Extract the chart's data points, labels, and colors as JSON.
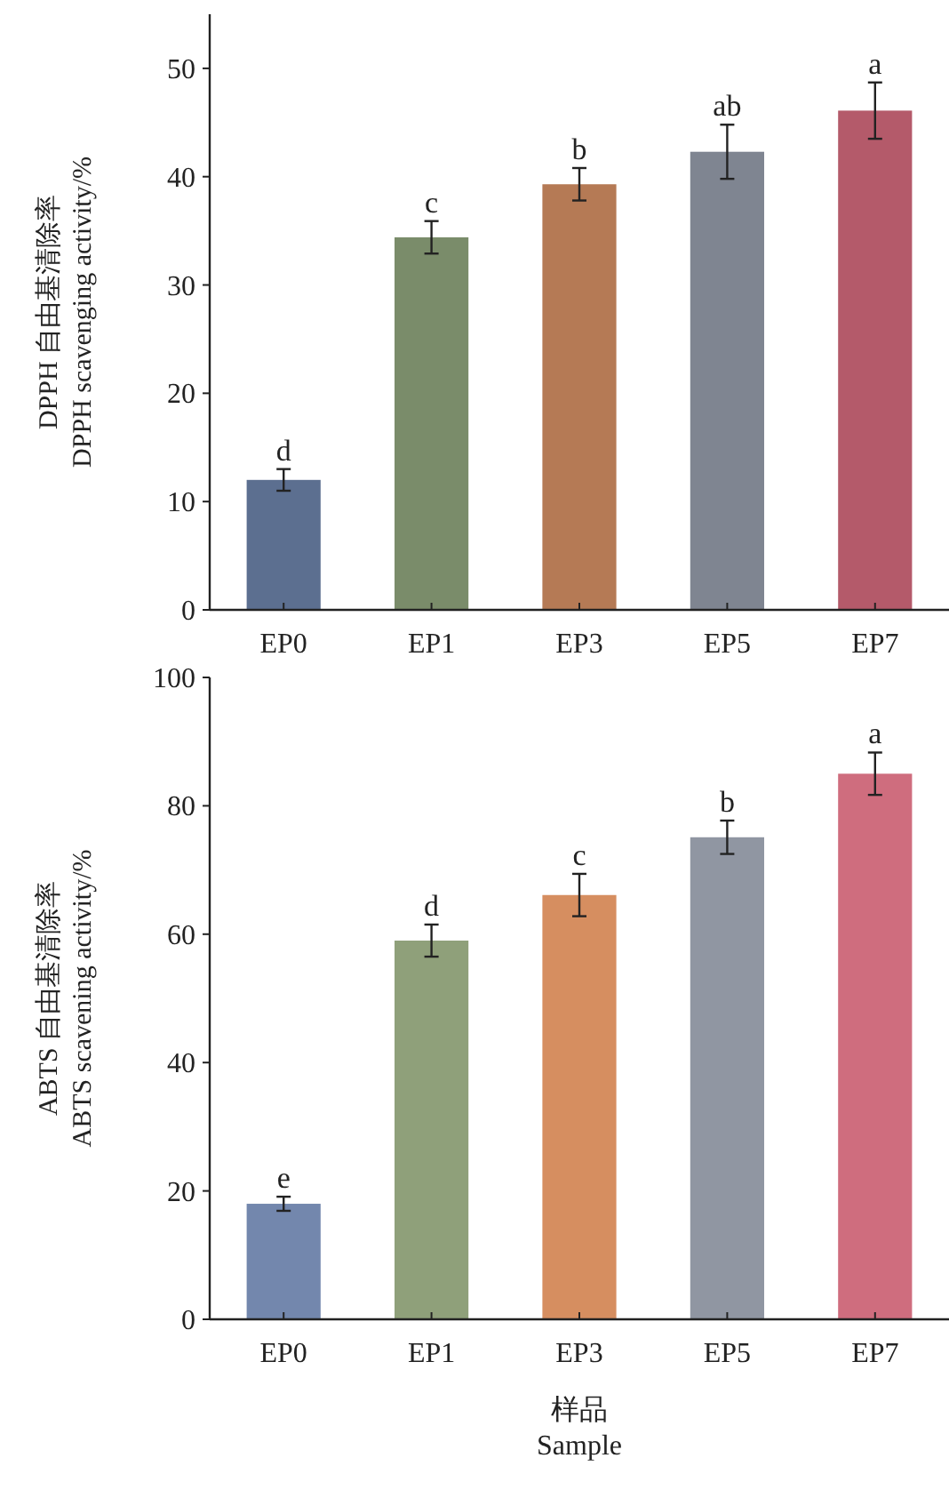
{
  "chart_data": [
    {
      "type": "bar",
      "ylabel": "DPPH 自由基清除率\nDPPH scavenging activity/%",
      "categories": [
        "EP0",
        "EP1",
        "EP3",
        "EP5",
        "EP7"
      ],
      "values": [
        12.0,
        34.4,
        39.3,
        42.3,
        46.1
      ],
      "errors": [
        1.0,
        1.5,
        1.5,
        2.5,
        2.6
      ],
      "colors": [
        "#5c6f90",
        "#7a8c6a",
        "#b57a55",
        "#7f8591",
        "#b45a6a"
      ],
      "ylim": [
        0,
        55
      ],
      "yticks": [
        0,
        10,
        20,
        30,
        40,
        50
      ],
      "annotations": [
        {
          "text": "d",
          "x": "EP0",
          "y": 13.0
        },
        {
          "text": "c",
          "x": "EP1",
          "y": 35.9
        },
        {
          "text": "b",
          "x": "EP3",
          "y": 40.8
        },
        {
          "text": "ab",
          "x": "EP5",
          "y": 44.8
        },
        {
          "text": "a",
          "x": "EP7",
          "y": 48.7
        }
      ]
    },
    {
      "type": "bar",
      "ylabel": "ABTS 自由基清除率\nABTS scavening activity/%",
      "xlabel": "样品\nSample",
      "categories": [
        "EP0",
        "EP1",
        "EP3",
        "EP5",
        "EP7"
      ],
      "values": [
        18.0,
        59.0,
        66.1,
        75.1,
        85.0
      ],
      "errors": [
        1.1,
        2.5,
        3.3,
        2.6,
        3.3
      ],
      "colors": [
        "#7387ad",
        "#8fa07a",
        "#d68e60",
        "#9096a2",
        "#cf6d7e"
      ],
      "ylim": [
        0,
        100
      ],
      "yticks": [
        0,
        20,
        40,
        60,
        80,
        100
      ],
      "annotations": [
        {
          "text": "e",
          "x": "EP0",
          "y": 19.1
        },
        {
          "text": "d",
          "x": "EP1",
          "y": 61.5
        },
        {
          "text": "c",
          "x": "EP3",
          "y": 69.4
        },
        {
          "text": "b",
          "x": "EP5",
          "y": 77.7
        },
        {
          "text": "a",
          "x": "EP7",
          "y": 88.3
        }
      ]
    }
  ]
}
